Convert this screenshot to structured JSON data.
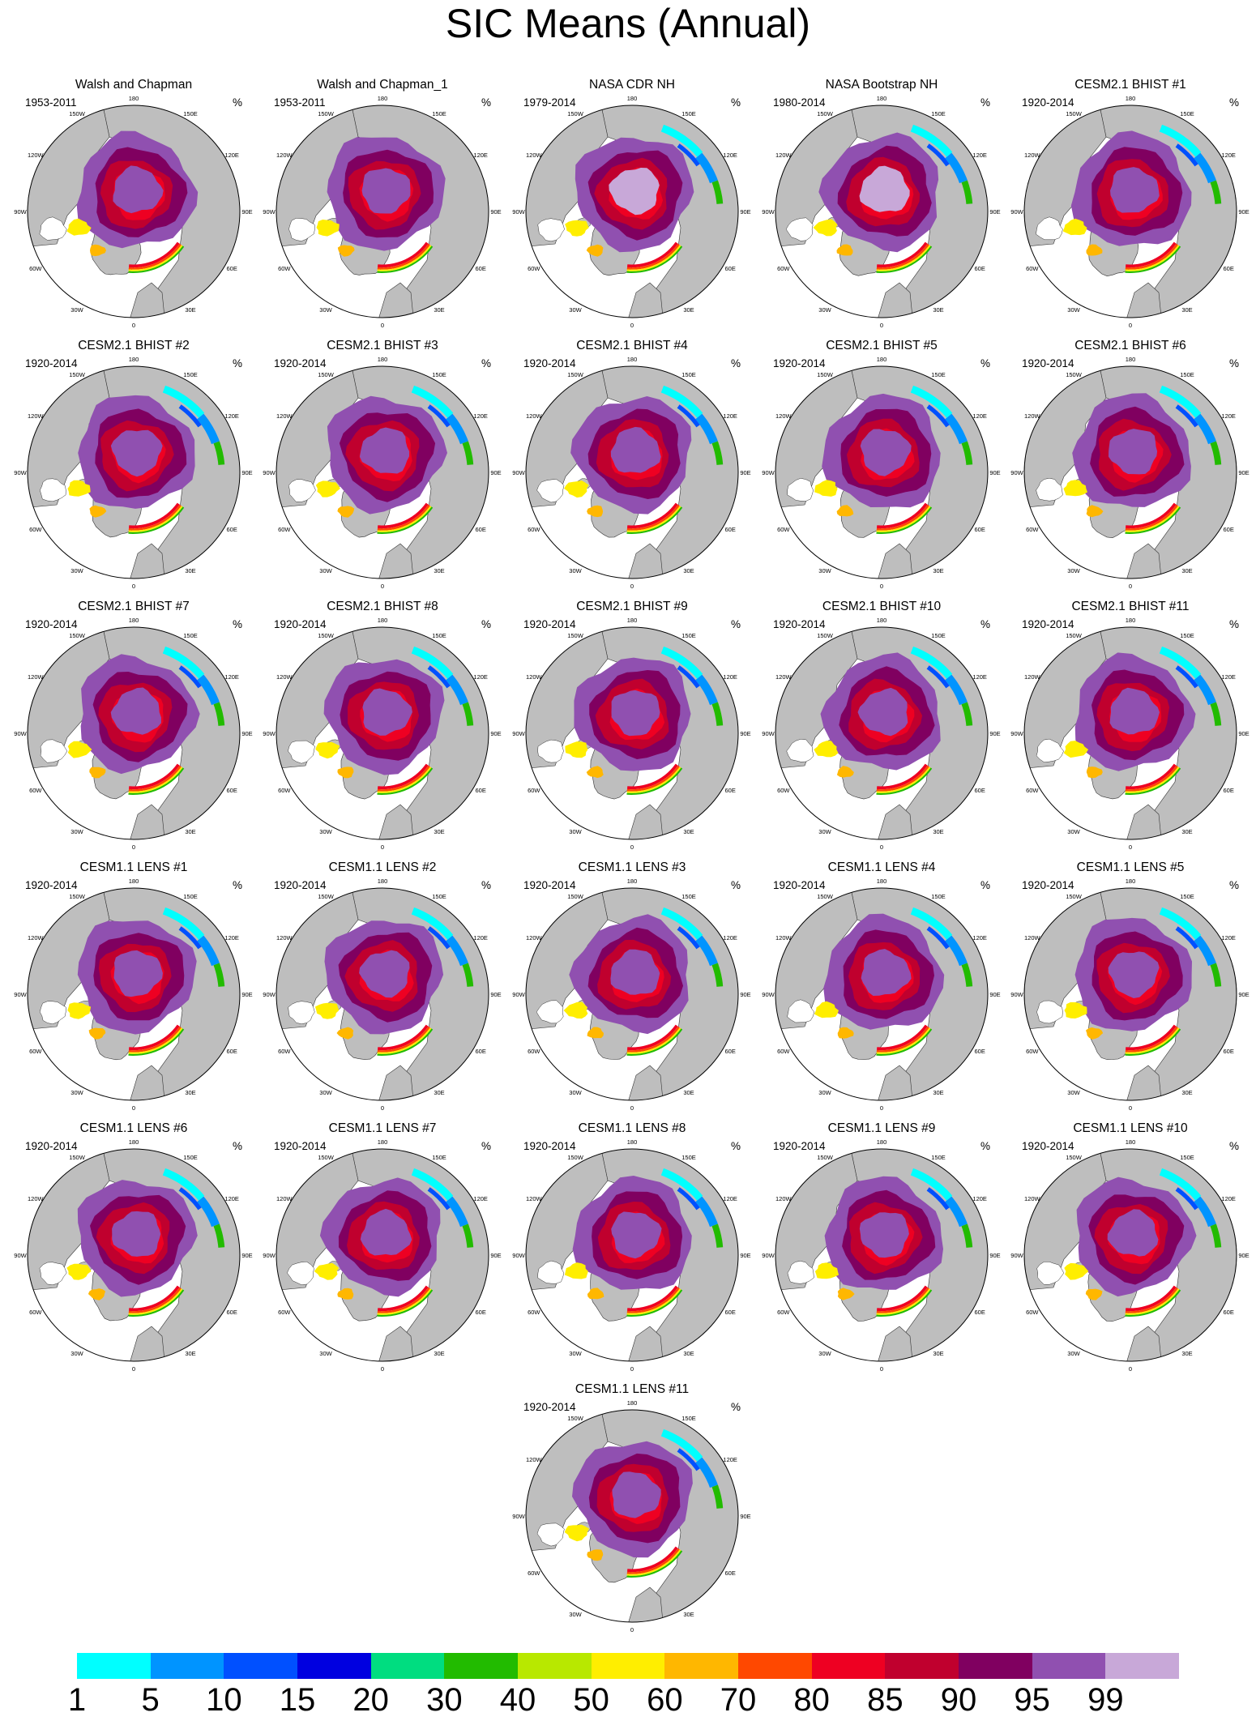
{
  "title": "SIC Means (Annual)",
  "units": "%",
  "longitude_labels": [
    "180",
    "150E",
    "120E",
    "90E",
    "60E",
    "30E",
    "0",
    "30W",
    "60W",
    "90W",
    "120W",
    "150W"
  ],
  "map_fills": {
    "land": "#bebebe",
    "ocean": "#ffffff",
    "coastline": "#000000"
  },
  "panels": [
    {
      "title": "Walsh and Chapman",
      "period": "1953-2011"
    },
    {
      "title": "Walsh and Chapman_1",
      "period": "1953-2011"
    },
    {
      "title": "NASA CDR NH",
      "period": "1979-2014"
    },
    {
      "title": "NASA Bootstrap NH",
      "period": "1980-2014"
    },
    {
      "title": "CESM2.1 BHIST #1",
      "period": "1920-2014"
    },
    {
      "title": "CESM2.1 BHIST #2",
      "period": "1920-2014"
    },
    {
      "title": "CESM2.1 BHIST #3",
      "period": "1920-2014"
    },
    {
      "title": "CESM2.1 BHIST #4",
      "period": "1920-2014"
    },
    {
      "title": "CESM2.1 BHIST #5",
      "period": "1920-2014"
    },
    {
      "title": "CESM2.1 BHIST #6",
      "period": "1920-2014"
    },
    {
      "title": "CESM2.1 BHIST #7",
      "period": "1920-2014"
    },
    {
      "title": "CESM2.1 BHIST #8",
      "period": "1920-2014"
    },
    {
      "title": "CESM2.1 BHIST #9",
      "period": "1920-2014"
    },
    {
      "title": "CESM2.1 BHIST #10",
      "period": "1920-2014"
    },
    {
      "title": "CESM2.1 BHIST #11",
      "period": "1920-2014"
    },
    {
      "title": "CESM1.1 LENS #1",
      "period": "1920-2014"
    },
    {
      "title": "CESM1.1 LENS #2",
      "period": "1920-2014"
    },
    {
      "title": "CESM1.1 LENS #3",
      "period": "1920-2014"
    },
    {
      "title": "CESM1.1 LENS #4",
      "period": "1920-2014"
    },
    {
      "title": "CESM1.1 LENS #5",
      "period": "1920-2014"
    },
    {
      "title": "CESM1.1 LENS #6",
      "period": "1920-2014"
    },
    {
      "title": "CESM1.1 LENS #7",
      "period": "1920-2014"
    },
    {
      "title": "CESM1.1 LENS #8",
      "period": "1920-2014"
    },
    {
      "title": "CESM1.1 LENS #9",
      "period": "1920-2014"
    },
    {
      "title": "CESM1.1 LENS #10",
      "period": "1920-2014"
    },
    {
      "title": "CESM1.1 LENS #11",
      "period": "1920-2014"
    }
  ],
  "colorbar": {
    "labels": [
      "1",
      "5",
      "10",
      "15",
      "20",
      "30",
      "40",
      "50",
      "60",
      "70",
      "80",
      "85",
      "90",
      "95",
      "99"
    ],
    "colors": [
      "#00ffff",
      "#0094ff",
      "#0050ff",
      "#0000e0",
      "#00dd80",
      "#22bb00",
      "#b8e800",
      "#ffee00",
      "#ffb700",
      "#ff4800",
      "#ee0022",
      "#c0002e",
      "#800060",
      "#9050b0",
      "#c8a8d8"
    ]
  }
}
